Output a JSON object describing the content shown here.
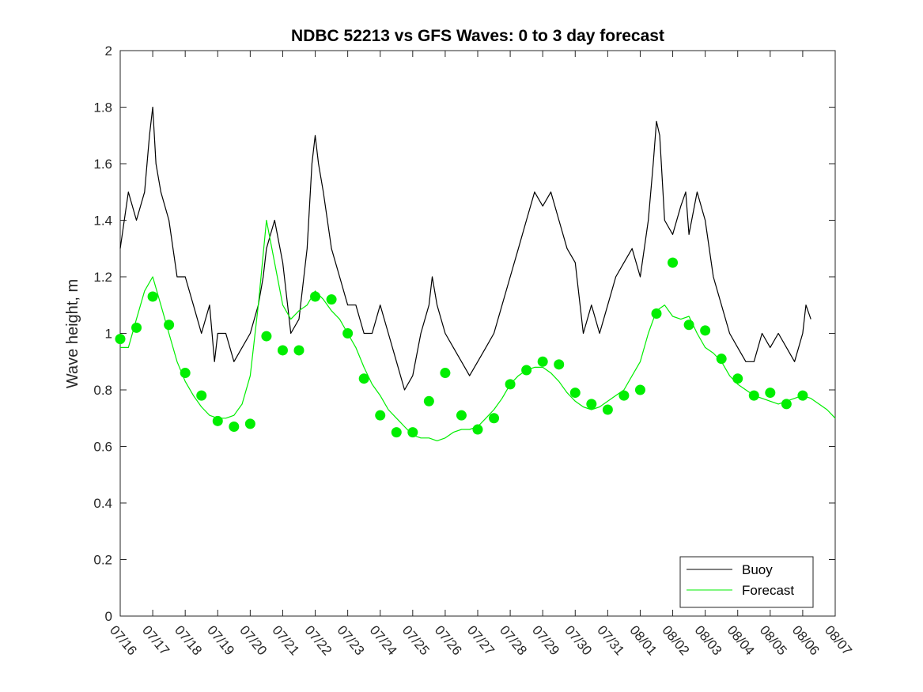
{
  "chart_data": {
    "type": "line",
    "title": "NDBC 52213 vs GFS Waves: 0 to 3 day forecast",
    "xlabel": "",
    "ylabel": "Wave height, m",
    "ylim": [
      0,
      2
    ],
    "yticks": [
      "0",
      "0.2",
      "0.4",
      "0.6",
      "0.8",
      "1",
      "1.2",
      "1.4",
      "1.6",
      "1.8",
      "2"
    ],
    "xlim_days": [
      0,
      22
    ],
    "xticks": [
      "07/16",
      "07/17",
      "07/18",
      "07/19",
      "07/20",
      "07/21",
      "07/22",
      "07/23",
      "07/24",
      "07/25",
      "07/26",
      "07/27",
      "07/28",
      "07/29",
      "07/30",
      "07/31",
      "08/01",
      "08/02",
      "08/03",
      "08/04",
      "08/05",
      "08/06",
      "08/07"
    ],
    "grid": false,
    "legend": {
      "position": "bottom-right",
      "entries": [
        "Buoy",
        "Forecast"
      ]
    },
    "series": [
      {
        "name": "Buoy",
        "color": "#000000",
        "x_days": [
          0.0,
          0.25,
          0.5,
          0.75,
          0.9,
          1.0,
          1.1,
          1.25,
          1.5,
          1.75,
          2.0,
          2.25,
          2.5,
          2.75,
          2.9,
          3.0,
          3.25,
          3.5,
          3.75,
          4.0,
          4.25,
          4.4,
          4.5,
          4.75,
          5.0,
          5.25,
          5.5,
          5.75,
          5.9,
          6.0,
          6.1,
          6.25,
          6.5,
          6.75,
          7.0,
          7.25,
          7.5,
          7.75,
          8.0,
          8.25,
          8.5,
          8.75,
          9.0,
          9.25,
          9.5,
          9.6,
          9.75,
          10.0,
          10.25,
          10.5,
          10.75,
          11.0,
          11.25,
          11.5,
          11.75,
          12.0,
          12.25,
          12.5,
          12.75,
          13.0,
          13.25,
          13.5,
          13.75,
          14.0,
          14.25,
          14.5,
          14.75,
          15.0,
          15.25,
          15.5,
          15.75,
          16.0,
          16.25,
          16.4,
          16.5,
          16.6,
          16.75,
          17.0,
          17.25,
          17.4,
          17.5,
          17.75,
          18.0,
          18.25,
          18.5,
          18.75,
          19.0,
          19.25,
          19.5,
          19.75,
          20.0,
          20.25,
          20.5,
          20.75,
          21.0,
          21.1,
          21.25
        ],
        "y": [
          1.3,
          1.5,
          1.4,
          1.5,
          1.7,
          1.8,
          1.6,
          1.5,
          1.4,
          1.2,
          1.2,
          1.1,
          1.0,
          1.1,
          0.9,
          1.0,
          1.0,
          0.9,
          0.95,
          1.0,
          1.1,
          1.2,
          1.3,
          1.4,
          1.25,
          1.0,
          1.05,
          1.3,
          1.6,
          1.7,
          1.6,
          1.5,
          1.3,
          1.2,
          1.1,
          1.1,
          1.0,
          1.0,
          1.1,
          1.0,
          0.9,
          0.8,
          0.85,
          1.0,
          1.1,
          1.2,
          1.1,
          1.0,
          0.95,
          0.9,
          0.85,
          0.9,
          0.95,
          1.0,
          1.1,
          1.2,
          1.3,
          1.4,
          1.5,
          1.45,
          1.5,
          1.4,
          1.3,
          1.25,
          1.0,
          1.1,
          1.0,
          1.1,
          1.2,
          1.25,
          1.3,
          1.2,
          1.4,
          1.6,
          1.75,
          1.7,
          1.4,
          1.35,
          1.45,
          1.5,
          1.35,
          1.5,
          1.4,
          1.2,
          1.1,
          1.0,
          0.95,
          0.9,
          0.9,
          1.0,
          0.95,
          1.0,
          0.95,
          0.9,
          1.0,
          1.1,
          1.05
        ]
      },
      {
        "name": "Forecast",
        "color": "#00ee00",
        "x_days": [
          0.0,
          0.25,
          0.5,
          0.75,
          1.0,
          1.25,
          1.5,
          1.75,
          2.0,
          2.25,
          2.5,
          2.75,
          3.0,
          3.25,
          3.5,
          3.75,
          4.0,
          4.25,
          4.5,
          4.75,
          5.0,
          5.25,
          5.5,
          5.75,
          6.0,
          6.25,
          6.5,
          6.75,
          7.0,
          7.25,
          7.5,
          7.75,
          8.0,
          8.25,
          8.5,
          8.75,
          9.0,
          9.25,
          9.5,
          9.75,
          10.0,
          10.25,
          10.5,
          10.75,
          11.0,
          11.25,
          11.5,
          11.75,
          12.0,
          12.25,
          12.5,
          12.75,
          13.0,
          13.25,
          13.5,
          13.75,
          14.0,
          14.25,
          14.5,
          14.75,
          15.0,
          15.25,
          15.5,
          15.75,
          16.0,
          16.25,
          16.5,
          16.75,
          17.0,
          17.25,
          17.5,
          17.75,
          18.0,
          18.25,
          18.5,
          18.75,
          19.0,
          19.25,
          19.5,
          19.75,
          20.0,
          20.25,
          20.5,
          20.75,
          21.0,
          21.25,
          21.5,
          21.75,
          22.0
        ],
        "y": [
          0.95,
          0.95,
          1.05,
          1.15,
          1.2,
          1.1,
          1.0,
          0.9,
          0.83,
          0.78,
          0.74,
          0.71,
          0.7,
          0.7,
          0.71,
          0.75,
          0.85,
          1.1,
          1.4,
          1.25,
          1.1,
          1.05,
          1.08,
          1.1,
          1.15,
          1.12,
          1.08,
          1.05,
          1.0,
          0.95,
          0.88,
          0.82,
          0.78,
          0.73,
          0.7,
          0.67,
          0.64,
          0.63,
          0.63,
          0.62,
          0.63,
          0.65,
          0.66,
          0.66,
          0.67,
          0.7,
          0.73,
          0.77,
          0.82,
          0.85,
          0.87,
          0.88,
          0.88,
          0.86,
          0.83,
          0.79,
          0.76,
          0.74,
          0.73,
          0.74,
          0.76,
          0.78,
          0.8,
          0.85,
          0.9,
          1.0,
          1.08,
          1.1,
          1.06,
          1.05,
          1.06,
          1.0,
          0.95,
          0.93,
          0.9,
          0.85,
          0.82,
          0.8,
          0.78,
          0.77,
          0.76,
          0.75,
          0.76,
          0.77,
          0.78,
          0.77,
          0.75,
          0.73,
          0.7
        ]
      },
      {
        "name": "Forecast points",
        "color": "#00ee00",
        "x_days": [
          0.0,
          0.5,
          1.0,
          1.5,
          2.0,
          2.5,
          3.0,
          3.5,
          4.0,
          4.5,
          5.0,
          5.5,
          6.0,
          6.5,
          7.0,
          7.5,
          8.0,
          8.5,
          9.0,
          9.5,
          10.0,
          10.5,
          11.0,
          11.5,
          12.0,
          12.5,
          13.0,
          13.5,
          14.0,
          14.5,
          15.0,
          15.5,
          16.0,
          16.5,
          17.0,
          17.5,
          18.0,
          18.5,
          19.0,
          19.5,
          20.0,
          20.5,
          21.0
        ],
        "y": [
          0.98,
          1.02,
          1.13,
          1.03,
          0.86,
          0.78,
          0.69,
          0.67,
          0.68,
          0.99,
          0.94,
          0.94,
          1.13,
          1.12,
          1.0,
          0.84,
          0.71,
          0.65,
          0.65,
          0.76,
          0.86,
          0.71,
          0.66,
          0.7,
          0.82,
          0.87,
          0.9,
          0.89,
          0.79,
          0.75,
          0.73,
          0.78,
          0.8,
          1.07,
          1.25,
          1.03,
          1.01,
          0.91,
          0.84,
          0.78,
          0.79,
          0.75,
          0.78
        ]
      }
    ]
  }
}
